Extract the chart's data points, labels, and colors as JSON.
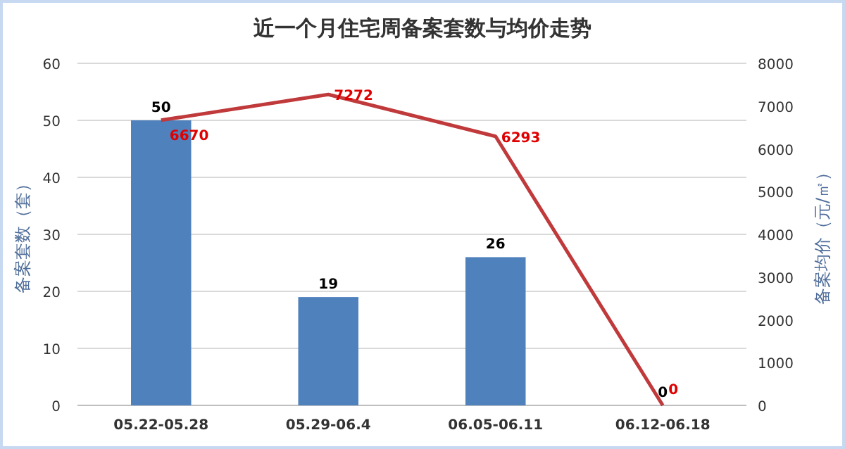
{
  "chart_data": {
    "type": "bar",
    "title": "近一个月住宅周备案套数与均价走势",
    "ylabel": "备案套数（套）",
    "y2label": "备案均价（元/㎡）",
    "categories": [
      "05.22-05.28",
      "05.29-06.4",
      "06.05-06.11",
      "06.12-06.18"
    ],
    "series": [
      {
        "type": "bar",
        "color": "#4f81bd",
        "values": [
          50,
          19,
          26,
          0
        ]
      },
      {
        "type": "line",
        "axis": "y2",
        "color": "#c0393b",
        "values": [
          6670,
          7272,
          6293,
          0
        ]
      }
    ],
    "ylim": [
      0,
      60
    ],
    "yticks": [
      0,
      10,
      20,
      30,
      40,
      50,
      60
    ],
    "y2lim": [
      0,
      8000
    ],
    "y2ticks": [
      0,
      1000,
      2000,
      3000,
      4000,
      5000,
      6000,
      7000,
      8000
    ],
    "grid": "y",
    "data_labels": true,
    "marker": "none",
    "line_style": "solid"
  }
}
